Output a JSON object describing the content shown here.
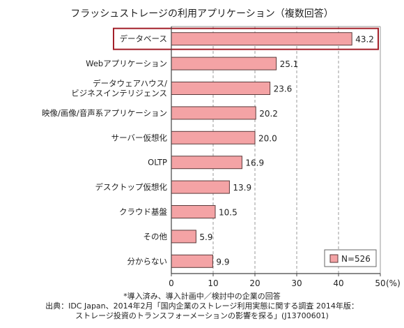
{
  "chart_data": {
    "type": "bar",
    "orientation": "horizontal",
    "title": "フラッシュストレージの利用アプリケーション（複数回答）",
    "categories": [
      "データベース",
      "Webアプリケーション",
      "データウェアハウス/\nビジネスインテリジェンス",
      "映像/画像/音声系アプリケーション",
      "サーバー仮想化",
      "OLTP",
      "デスクトップ仮想化",
      "クラウド基盤",
      "その他",
      "分からない"
    ],
    "values": [
      43.2,
      25.1,
      23.6,
      20.2,
      20.0,
      16.9,
      13.9,
      10.5,
      5.9,
      9.9
    ],
    "value_labels": [
      "43.2",
      "25.1",
      "23.6",
      "20.2",
      "20.0",
      "16.9",
      "13.9",
      "10.5",
      "5.9",
      "9.9"
    ],
    "xlim": [
      0,
      50
    ],
    "xticks": [
      "0",
      "10",
      "20",
      "30",
      "40",
      "50"
    ],
    "x_unit": "(%)",
    "grid": "vertical dashed",
    "highlighted_category": "データベース",
    "legend": {
      "label": "N=526",
      "placement": "bottom-right"
    },
    "colors": {
      "bar_fill": "#f4a3a5",
      "bar_stroke": "#5a3a3a",
      "highlight_box": "#a3202a",
      "grid": "#9a9a9a"
    }
  },
  "footnote": "*導入済み、導入計画中／検討中の企業の回答",
  "source_line1": "出典：IDC Japan、2014年2月「国内企業のストレージ利用実態に関する調査 2014年版：",
  "source_line2": "ストレージ投資のトランスフォーメーションの影響を探る」(J13700601)"
}
